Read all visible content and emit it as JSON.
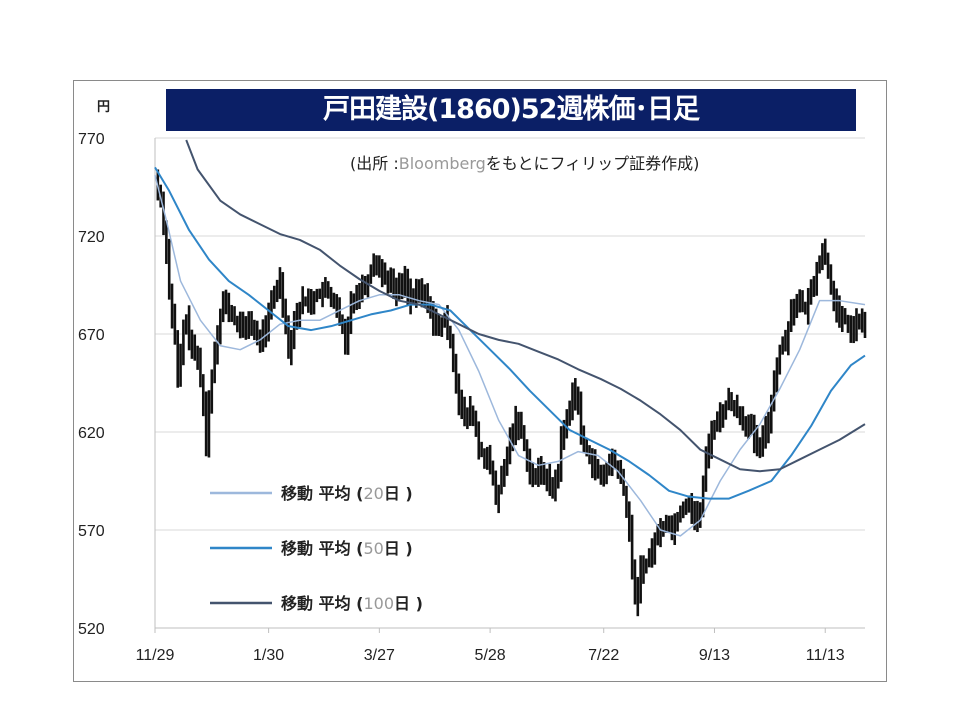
{
  "title": "戸田建設(1860)52週株価･日足",
  "source_prefix": "(出所 :",
  "source_brand": "Bloomberg",
  "source_suffix": "をもとにフィリップ証券作成)",
  "chart_data": {
    "type": "line",
    "title": "戸田建設(1860)52週株価･日足",
    "ylabel": "円",
    "ylim": [
      520,
      770
    ],
    "yticks": [
      770,
      720,
      670,
      620,
      570,
      520
    ],
    "xlim": [
      0,
      250
    ],
    "xticks": [
      {
        "day": 0,
        "label": "11/29"
      },
      {
        "day": 40,
        "label": "1/30"
      },
      {
        "day": 79,
        "label": "3/27"
      },
      {
        "day": 118,
        "label": "5/28"
      },
      {
        "day": 158,
        "label": "7/22"
      },
      {
        "day": 197,
        "label": "9/13"
      },
      {
        "day": 236,
        "label": "11/13"
      }
    ],
    "grid": true,
    "legend_position": "bottom-left",
    "price": {
      "name": "株価(日足)",
      "color": "#111111",
      "points": [
        [
          0,
          749
        ],
        [
          2,
          738
        ],
        [
          4,
          713
        ],
        [
          5,
          692
        ],
        [
          7,
          667
        ],
        [
          8,
          646
        ],
        [
          10,
          672
        ],
        [
          11,
          677
        ],
        [
          13,
          662
        ],
        [
          15,
          657
        ],
        [
          17,
          636
        ],
        [
          18,
          611
        ],
        [
          19,
          636
        ],
        [
          21,
          662
        ],
        [
          22,
          672
        ],
        [
          24,
          687
        ],
        [
          26,
          682
        ],
        [
          28,
          677
        ],
        [
          31,
          672
        ],
        [
          33,
          677
        ],
        [
          36,
          667
        ],
        [
          39,
          672
        ],
        [
          41,
          687
        ],
        [
          44,
          698
        ],
        [
          47,
          662
        ],
        [
          49,
          677
        ],
        [
          52,
          687
        ],
        [
          55,
          687
        ],
        [
          57,
          690
        ],
        [
          60,
          692
        ],
        [
          63,
          687
        ],
        [
          66,
          672
        ],
        [
          67,
          662
        ],
        [
          69,
          687
        ],
        [
          72,
          692
        ],
        [
          75,
          698
        ],
        [
          77,
          708
        ],
        [
          79,
          703
        ],
        [
          82,
          698
        ],
        [
          85,
          692
        ],
        [
          88,
          698
        ],
        [
          90,
          687
        ],
        [
          93,
          692
        ],
        [
          96,
          687
        ],
        [
          99,
          672
        ],
        [
          102,
          677
        ],
        [
          104,
          667
        ],
        [
          106,
          646
        ],
        [
          107,
          636
        ],
        [
          109,
          626
        ],
        [
          111,
          631
        ],
        [
          113,
          621
        ],
        [
          114,
          611
        ],
        [
          117,
          606
        ],
        [
          119,
          596
        ],
        [
          120,
          585
        ],
        [
          123,
          601
        ],
        [
          125,
          616
        ],
        [
          127,
          626
        ],
        [
          129,
          621
        ],
        [
          131,
          606
        ],
        [
          133,
          596
        ],
        [
          136,
          601
        ],
        [
          138,
          596
        ],
        [
          140,
          590
        ],
        [
          142,
          601
        ],
        [
          143,
          616
        ],
        [
          145,
          626
        ],
        [
          147,
          641
        ],
        [
          149,
          636
        ],
        [
          150,
          616
        ],
        [
          152,
          611
        ],
        [
          155,
          601
        ],
        [
          157,
          596
        ],
        [
          159,
          601
        ],
        [
          161,
          606
        ],
        [
          163,
          601
        ],
        [
          165,
          590
        ],
        [
          167,
          570
        ],
        [
          169,
          534
        ],
        [
          170,
          539
        ],
        [
          171,
          550
        ],
        [
          174,
          555
        ],
        [
          176,
          565
        ],
        [
          178,
          570
        ],
        [
          180,
          575
        ],
        [
          182,
          570
        ],
        [
          185,
          580
        ],
        [
          188,
          585
        ],
        [
          190,
          575
        ],
        [
          192,
          580
        ],
        [
          194,
          606
        ],
        [
          196,
          621
        ],
        [
          198,
          626
        ],
        [
          200,
          631
        ],
        [
          202,
          636
        ],
        [
          205,
          631
        ],
        [
          207,
          626
        ],
        [
          210,
          621
        ],
        [
          212,
          611
        ],
        [
          214,
          616
        ],
        [
          216,
          626
        ],
        [
          218,
          646
        ],
        [
          220,
          662
        ],
        [
          222,
          667
        ],
        [
          224,
          682
        ],
        [
          226,
          687
        ],
        [
          229,
          682
        ],
        [
          231,
          692
        ],
        [
          233,
          703
        ],
        [
          235,
          713
        ],
        [
          237,
          703
        ],
        [
          239,
          687
        ],
        [
          241,
          677
        ],
        [
          243,
          677
        ],
        [
          245,
          672
        ],
        [
          248,
          677
        ],
        [
          250,
          672
        ]
      ]
    },
    "series": [
      {
        "name": "移動平均(20日)",
        "label_main": "移動 平均 (",
        "label_num": "20",
        "label_end": "日 )",
        "color": "#9db8dc",
        "points": [
          [
            0,
            751
          ],
          [
            4,
            728
          ],
          [
            9,
            697
          ],
          [
            16,
            677
          ],
          [
            23,
            664
          ],
          [
            30,
            662
          ],
          [
            37,
            667
          ],
          [
            44,
            675
          ],
          [
            51,
            677
          ],
          [
            58,
            677
          ],
          [
            65,
            682
          ],
          [
            72,
            687
          ],
          [
            79,
            690
          ],
          [
            86,
            690
          ],
          [
            93,
            687
          ],
          [
            100,
            685
          ],
          [
            107,
            672
          ],
          [
            114,
            651
          ],
          [
            121,
            626
          ],
          [
            128,
            608
          ],
          [
            135,
            603
          ],
          [
            142,
            605
          ],
          [
            149,
            610
          ],
          [
            156,
            608
          ],
          [
            163,
            600
          ],
          [
            171,
            585
          ],
          [
            178,
            570
          ],
          [
            185,
            567
          ],
          [
            192,
            575
          ],
          [
            199,
            595
          ],
          [
            206,
            611
          ],
          [
            213,
            624
          ],
          [
            220,
            642
          ],
          [
            227,
            662
          ],
          [
            234,
            687
          ],
          [
            241,
            687
          ],
          [
            250,
            685
          ]
        ]
      },
      {
        "name": "移動平均(50日)",
        "label_main": "移動 平均 (",
        "label_num": "50",
        "label_end": "日 )",
        "color": "#2f86c8",
        "points": [
          [
            0,
            755
          ],
          [
            5,
            743
          ],
          [
            12,
            723
          ],
          [
            19,
            708
          ],
          [
            26,
            697
          ],
          [
            33,
            690
          ],
          [
            40,
            682
          ],
          [
            47,
            674
          ],
          [
            55,
            672
          ],
          [
            62,
            674
          ],
          [
            69,
            677
          ],
          [
            76,
            680
          ],
          [
            83,
            682
          ],
          [
            90,
            685
          ],
          [
            97,
            685
          ],
          [
            104,
            682
          ],
          [
            111,
            672
          ],
          [
            118,
            662
          ],
          [
            125,
            652
          ],
          [
            132,
            641
          ],
          [
            139,
            631
          ],
          [
            146,
            621
          ],
          [
            153,
            616
          ],
          [
            160,
            611
          ],
          [
            167,
            605
          ],
          [
            174,
            598
          ],
          [
            181,
            590
          ],
          [
            188,
            587
          ],
          [
            195,
            586
          ],
          [
            202,
            586
          ],
          [
            209,
            590
          ],
          [
            217,
            595
          ],
          [
            224,
            608
          ],
          [
            231,
            623
          ],
          [
            238,
            641
          ],
          [
            245,
            654
          ],
          [
            250,
            659
          ]
        ]
      },
      {
        "name": "移動平均(100日)",
        "label_main": "移動 平均 (",
        "label_num": "100",
        "label_end": "日 )",
        "color": "#44546e",
        "points": [
          [
            11,
            769
          ],
          [
            15,
            754
          ],
          [
            23,
            738
          ],
          [
            30,
            731
          ],
          [
            37,
            726
          ],
          [
            44,
            721
          ],
          [
            51,
            718
          ],
          [
            58,
            713
          ],
          [
            65,
            705
          ],
          [
            72,
            698
          ],
          [
            79,
            692
          ],
          [
            86,
            687
          ],
          [
            93,
            685
          ],
          [
            100,
            680
          ],
          [
            107,
            675
          ],
          [
            114,
            670
          ],
          [
            121,
            667
          ],
          [
            128,
            665
          ],
          [
            135,
            661
          ],
          [
            142,
            657
          ],
          [
            149,
            652
          ],
          [
            157,
            647
          ],
          [
            164,
            642
          ],
          [
            171,
            636
          ],
          [
            178,
            629
          ],
          [
            185,
            621
          ],
          [
            192,
            611
          ],
          [
            199,
            606
          ],
          [
            206,
            601
          ],
          [
            213,
            600
          ],
          [
            220,
            601
          ],
          [
            227,
            606
          ],
          [
            234,
            611
          ],
          [
            241,
            616
          ],
          [
            250,
            624
          ]
        ]
      }
    ]
  }
}
